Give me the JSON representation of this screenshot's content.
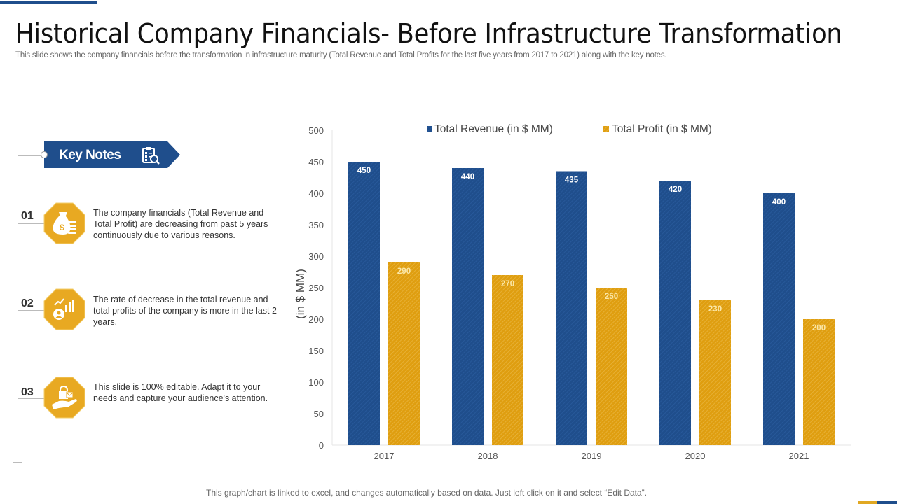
{
  "slide": {
    "title": "Historical Company Financials- Before Infrastructure Transformation",
    "subtitle": "This slide shows the company financials before the transformation in infrastructure maturity (Total Revenue and Total Profits for the last five years from 2017 to 2021) along with the key notes.",
    "footer_note": "This graph/chart is linked to excel, and changes automatically based on data. Just left click on it and select “Edit Data”."
  },
  "key_notes": {
    "label": "Key Notes",
    "icon": "clipboard-search-icon",
    "items": [
      {
        "number": "01",
        "icon": "money-bag-icon",
        "text": "The company financials (Total Revenue and Total Profit) are decreasing from past 5 years continuously due to various reasons."
      },
      {
        "number": "02",
        "icon": "growth-chart-person-icon",
        "text": "The rate of decrease in the total revenue and total profits of the company is more in the last 2 years."
      },
      {
        "number": "03",
        "icon": "hand-lock-icon",
        "text": "This slide is 100% editable. Adapt it to your needs and capture your audience's attention."
      }
    ]
  },
  "colors": {
    "revenue": "#1f4e8c",
    "profit": "#e1a11a",
    "accent_gold": "#e8a922",
    "accent_blue": "#1f4e8c"
  },
  "chart_data": {
    "type": "bar",
    "title": "",
    "categories": [
      "2017",
      "2018",
      "2019",
      "2020",
      "2021"
    ],
    "series": [
      {
        "name": "Total Revenue (in $ MM)",
        "values": [
          450,
          440,
          435,
          420,
          400
        ]
      },
      {
        "name": "Total Profit (in $ MM)",
        "values": [
          290,
          270,
          250,
          230,
          200
        ]
      }
    ],
    "xlabel": "",
    "ylabel": "(in $ MM)",
    "ylim": [
      0,
      500
    ],
    "yticks": [
      0,
      50,
      100,
      150,
      200,
      250,
      300,
      350,
      400,
      450,
      500
    ],
    "grid": false,
    "legend": "top",
    "data_labels": true
  }
}
